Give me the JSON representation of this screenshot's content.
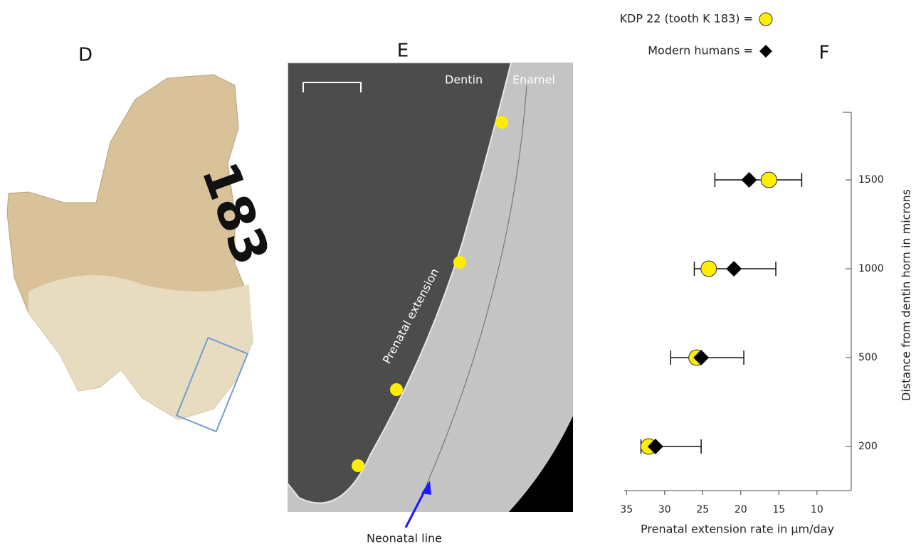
{
  "panels": {
    "d": {
      "label": "D"
    },
    "e": {
      "label": "E",
      "dentin": "Dentin",
      "enamel": "Enamel",
      "prenatal": "Prenatal extension",
      "neonatal": "Neonatal line"
    }
  },
  "chart_data": {
    "type": "dot-range",
    "panel_label": "F",
    "x_label": "Prenatal extension rate in µm/day",
    "y_label": "Distance from dentin horn in microns",
    "categories": [
      "200",
      "500",
      "1000",
      "1500"
    ],
    "xlim": [
      35.3,
      5.5
    ],
    "xticks": [
      35,
      30,
      25,
      20,
      15,
      10
    ],
    "series": [
      {
        "name": "KDP 22 (tooth K 183) =",
        "color": "#ffee00",
        "marker": "circle",
        "values": [
          32.1,
          25.8,
          24.2,
          16.3
        ]
      },
      {
        "name": "Modern humans =",
        "color": "#000000",
        "marker": "diamond",
        "values": [
          31.2,
          25.2,
          20.9,
          18.9
        ],
        "low": [
          25.2,
          19.6,
          15.4,
          12.0
        ],
        "high": [
          33.1,
          29.2,
          26.1,
          23.4
        ]
      }
    ]
  }
}
